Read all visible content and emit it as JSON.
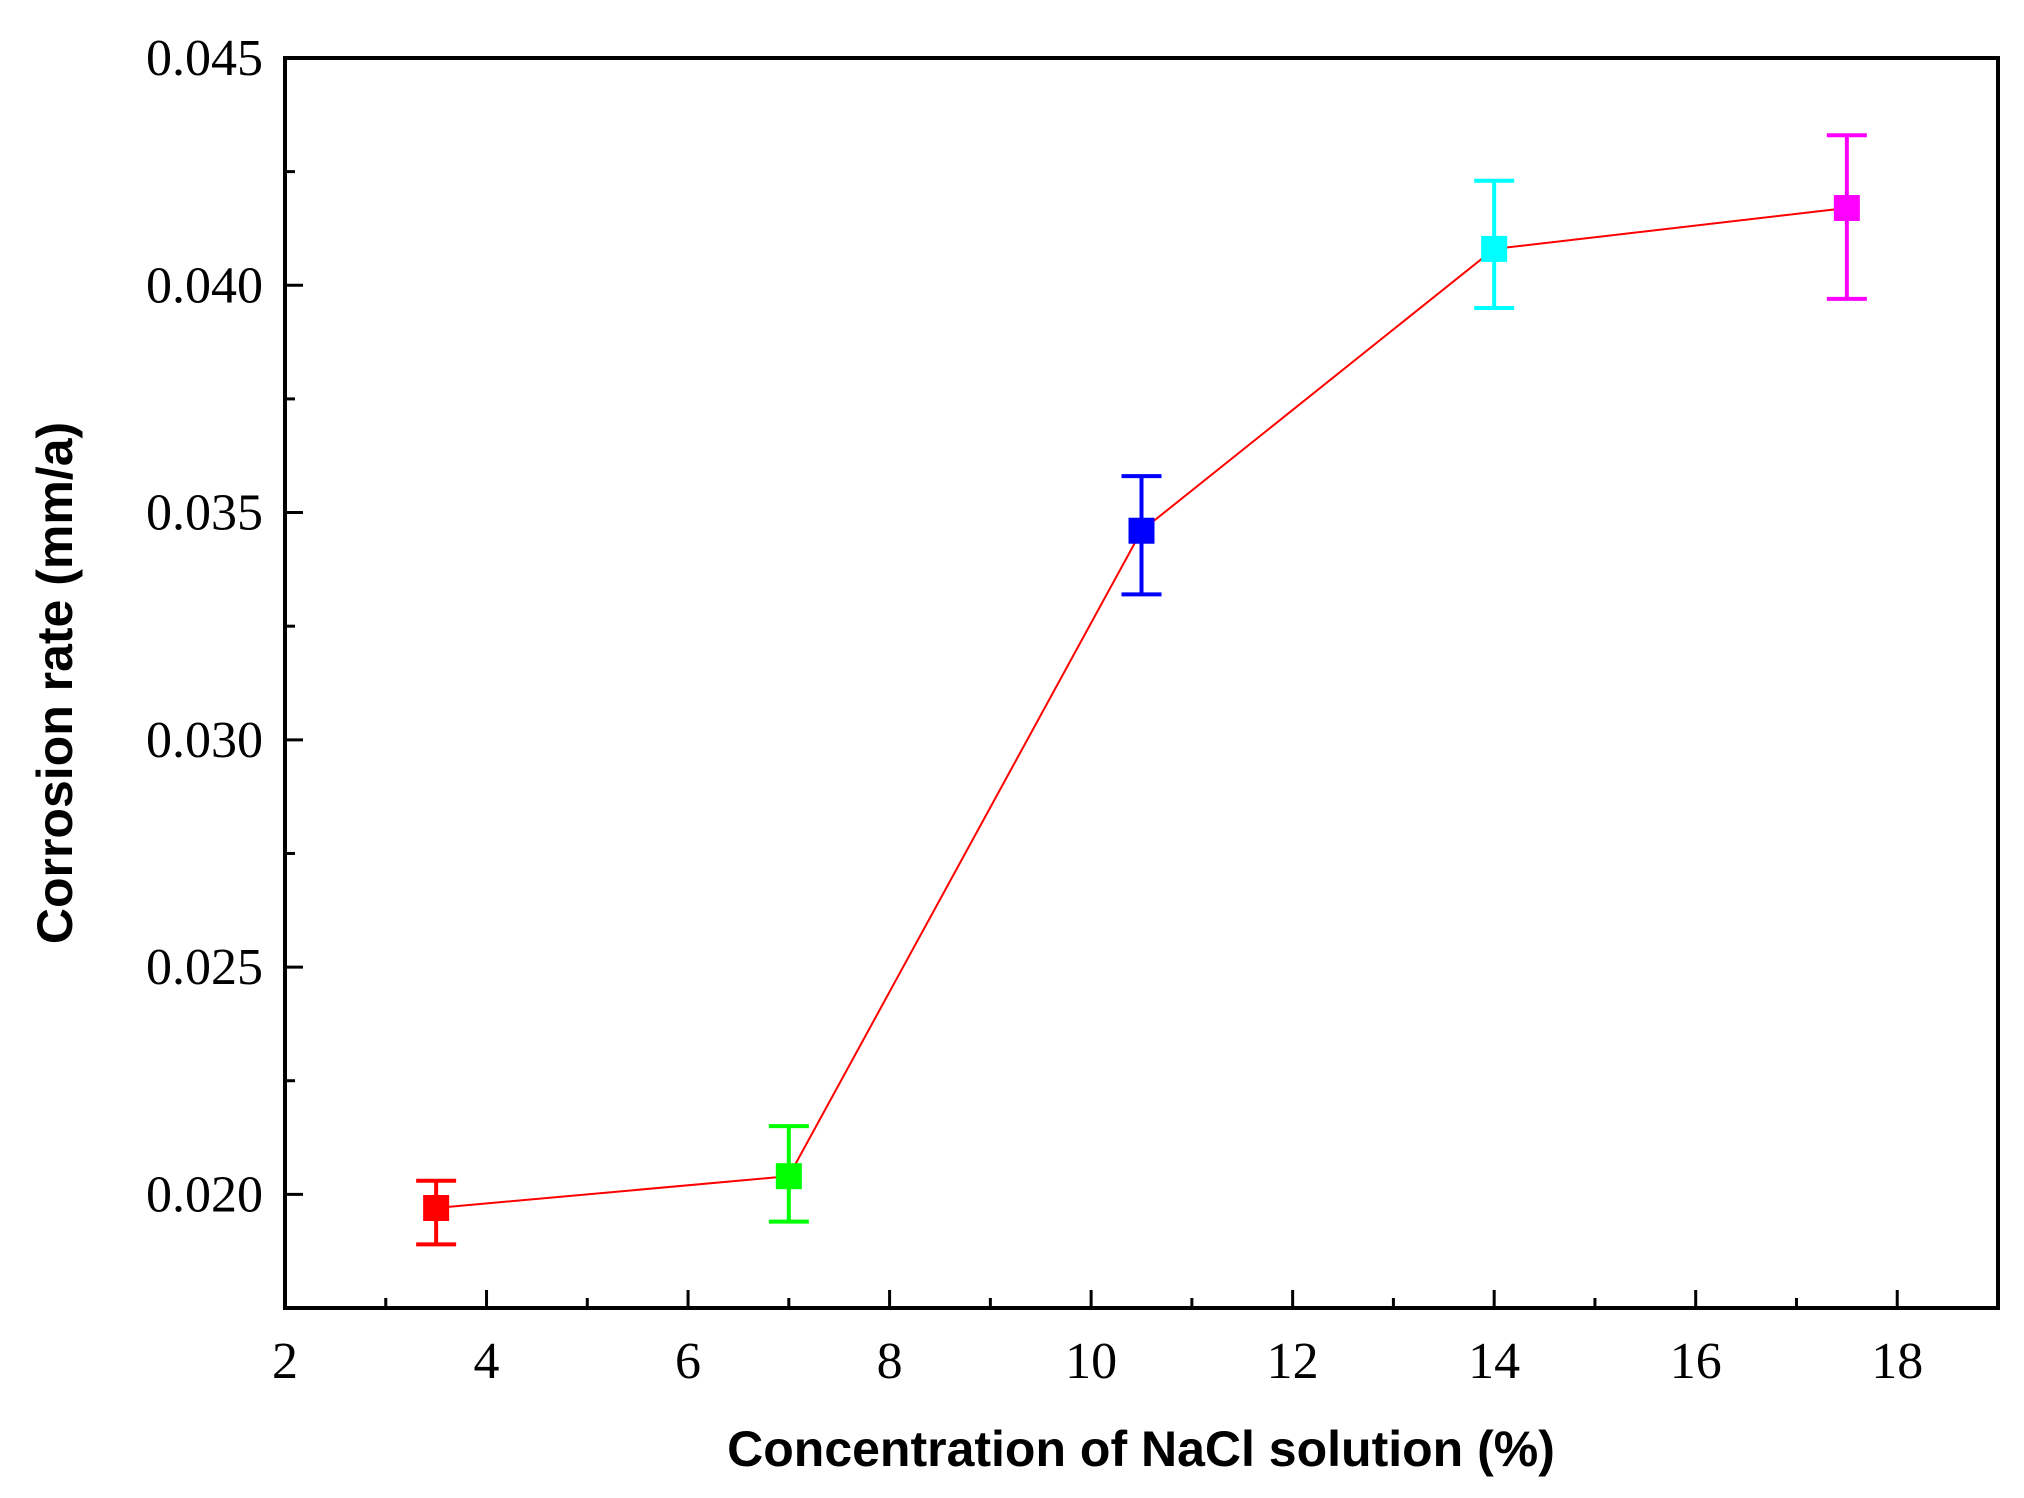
{
  "chart_data": {
    "type": "line",
    "title": "",
    "xlabel": "Concentration of NaCl solution (%)",
    "ylabel": "Corrosion rate (mm/a)",
    "xlim": [
      2,
      19
    ],
    "ylim": [
      0.0175,
      0.045
    ],
    "x_ticks": [
      2,
      4,
      6,
      8,
      10,
      12,
      14,
      16,
      18
    ],
    "x_tick_labels": [
      "2",
      "4",
      "6",
      "8",
      "10",
      "12",
      "14",
      "16",
      "18"
    ],
    "y_ticks": [
      0.02,
      0.025,
      0.03,
      0.035,
      0.04,
      0.045
    ],
    "y_tick_labels": [
      "0.020",
      "0.025",
      "0.030",
      "0.035",
      "0.040",
      "0.045"
    ],
    "grid": false,
    "line_color": "#ff0000",
    "series": [
      {
        "name": "Corrosion rate",
        "points": [
          {
            "x": 3.5,
            "y": 0.0197,
            "err_low": 0.0189,
            "err_high": 0.0203,
            "color": "#ff0000"
          },
          {
            "x": 7.0,
            "y": 0.0204,
            "err_low": 0.0194,
            "err_high": 0.0215,
            "color": "#00ff00"
          },
          {
            "x": 10.5,
            "y": 0.0346,
            "err_low": 0.0332,
            "err_high": 0.0358,
            "color": "#0000ff"
          },
          {
            "x": 14.0,
            "y": 0.0408,
            "err_low": 0.0395,
            "err_high": 0.0423,
            "color": "#00ffff"
          },
          {
            "x": 17.5,
            "y": 0.0417,
            "err_low": 0.0397,
            "err_high": 0.0433,
            "color": "#ff00ff"
          }
        ]
      }
    ]
  }
}
